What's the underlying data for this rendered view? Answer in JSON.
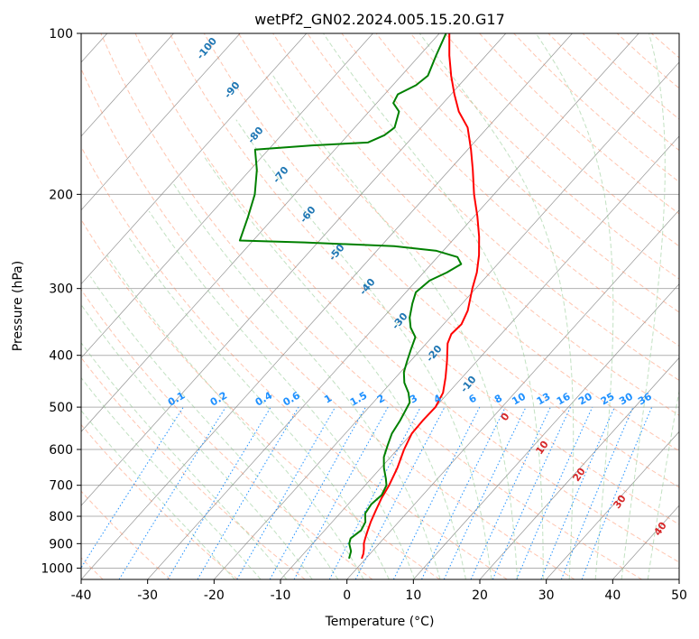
{
  "chart_data": {
    "type": "line",
    "title": "wetPf2_GN02.2024.005.15.20.G17",
    "xlabel": "Temperature (°C)",
    "ylabel": "Pressure (hPa)",
    "xlim": [
      -40,
      50
    ],
    "ylim": [
      1050,
      100
    ],
    "y_scale": "log",
    "skew": true,
    "x_ticks": [
      -40,
      -30,
      -20,
      -10,
      0,
      10,
      20,
      30,
      40,
      50
    ],
    "y_ticks": [
      1000,
      900,
      800,
      700,
      600,
      500,
      400,
      300,
      200,
      100
    ],
    "grid": true,
    "series": [
      {
        "color": "#ff0000",
        "points": [
          [
            960,
            -0.6
          ],
          [
            940,
            -1.0
          ],
          [
            920,
            -1.6
          ],
          [
            900,
            -2.3
          ],
          [
            880,
            -2.8
          ],
          [
            850,
            -3.5
          ],
          [
            820,
            -4.2
          ],
          [
            780,
            -5.0
          ],
          [
            740,
            -5.8
          ],
          [
            700,
            -6.4
          ],
          [
            650,
            -7.5
          ],
          [
            600,
            -9.0
          ],
          [
            560,
            -10.0
          ],
          [
            530,
            -10.1
          ],
          [
            500,
            -10.0
          ],
          [
            470,
            -10.8
          ],
          [
            440,
            -12.5
          ],
          [
            410,
            -14.5
          ],
          [
            380,
            -16.8
          ],
          [
            365,
            -17.5
          ],
          [
            350,
            -17.3
          ],
          [
            330,
            -18.2
          ],
          [
            300,
            -20.5
          ],
          [
            280,
            -22.0
          ],
          [
            260,
            -24.0
          ],
          [
            240,
            -26.5
          ],
          [
            220,
            -29.5
          ],
          [
            200,
            -33.0
          ],
          [
            180,
            -36.5
          ],
          [
            165,
            -39.5
          ],
          [
            150,
            -43.0
          ],
          [
            140,
            -46.5
          ],
          [
            130,
            -49.5
          ],
          [
            120,
            -52.5
          ],
          [
            110,
            -55.5
          ],
          [
            100,
            -58.5
          ]
        ]
      },
      {
        "color": "#008000",
        "points": [
          [
            960,
            -2.5
          ],
          [
            930,
            -3.2
          ],
          [
            900,
            -4.5
          ],
          [
            880,
            -5.0
          ],
          [
            850,
            -4.5
          ],
          [
            820,
            -5.0
          ],
          [
            790,
            -6.2
          ],
          [
            760,
            -6.5
          ],
          [
            730,
            -6.2
          ],
          [
            700,
            -6.8
          ],
          [
            680,
            -7.8
          ],
          [
            650,
            -9.5
          ],
          [
            620,
            -11.0
          ],
          [
            590,
            -12.0
          ],
          [
            560,
            -13.0
          ],
          [
            530,
            -13.5
          ],
          [
            510,
            -14.0
          ],
          [
            490,
            -14.5
          ],
          [
            470,
            -16.0
          ],
          [
            450,
            -18.0
          ],
          [
            430,
            -19.5
          ],
          [
            410,
            -20.5
          ],
          [
            390,
            -21.5
          ],
          [
            370,
            -22.5
          ],
          [
            355,
            -24.5
          ],
          [
            340,
            -26.0
          ],
          [
            320,
            -27.5
          ],
          [
            305,
            -28.5
          ],
          [
            290,
            -28.0
          ],
          [
            280,
            -26.5
          ],
          [
            270,
            -25.5
          ],
          [
            262,
            -27.0
          ],
          [
            255,
            -31.0
          ],
          [
            250,
            -38.0
          ],
          [
            246,
            -52.0
          ],
          [
            244,
            -62.0
          ],
          [
            220,
            -64.0
          ],
          [
            200,
            -66.0
          ],
          [
            180,
            -69.0
          ],
          [
            165,
            -72.0
          ],
          [
            162,
            -64.0
          ],
          [
            160,
            -56.0
          ],
          [
            155,
            -54.5
          ],
          [
            150,
            -54.0
          ],
          [
            140,
            -55.5
          ],
          [
            135,
            -57.5
          ],
          [
            130,
            -58.0
          ],
          [
            125,
            -56.5
          ],
          [
            120,
            -56.0
          ],
          [
            110,
            -57.5
          ],
          [
            100,
            -59.0
          ]
        ]
      }
    ],
    "mixing_ratio_labels": [
      "0.1",
      "0.2",
      "0.4",
      "0.6",
      "1",
      "1.5",
      "2",
      "3",
      "4",
      "6",
      "8",
      "10",
      "13",
      "16",
      "20",
      "25",
      "30",
      "36"
    ],
    "dry_adiabat_labels": [
      "-100",
      "-90",
      "-80",
      "-70",
      "-60",
      "-50",
      "-40",
      "-30",
      "-20",
      "-10"
    ],
    "moist_adiabat_labels": [
      "0",
      "10",
      "20",
      "30",
      "40"
    ],
    "colors": {
      "temperature": "#ff0000",
      "dewpoint": "#008000",
      "isotherm": "#808080",
      "dry_adiabat": "#ff7f50",
      "moist_adiabat": "#90c990",
      "mixing_ratio": "#1E90FF"
    }
  }
}
